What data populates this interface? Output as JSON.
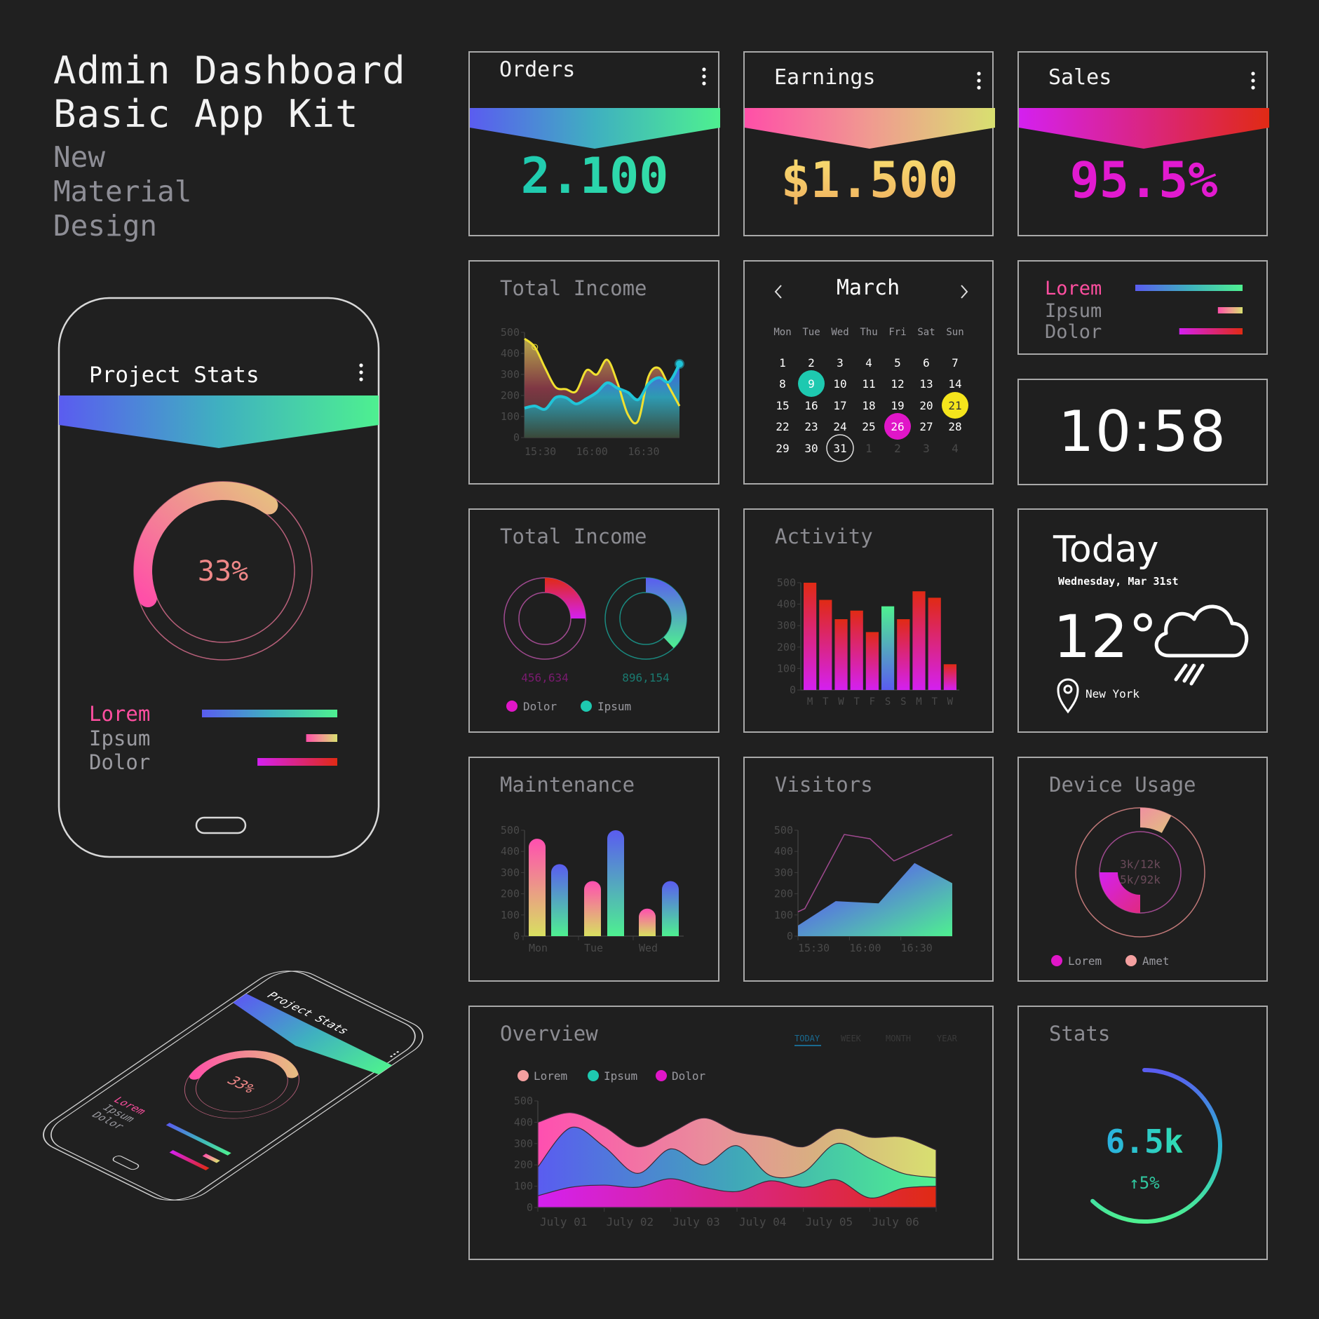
{
  "header": {
    "title_line1": "Admin Dashboard",
    "title_line2": "Basic App Kit",
    "subtitle": [
      "New",
      "Material",
      "Design"
    ]
  },
  "colors": {
    "background": "#202020",
    "border": "#a9a9a9",
    "teal": "#1ec9b0",
    "yellow": "#f5e51c",
    "magenta": "#e016c8",
    "pink": "#ff4fa0",
    "blue": "#5a5cf0",
    "green": "#4ef090",
    "red": "#e02a14"
  },
  "phone": {
    "title": "Project Stats",
    "menu_icon": "more-vertical-icon",
    "percent": "33%",
    "progress": 33,
    "legend": [
      {
        "label": "Lorem",
        "fill": 1.0
      },
      {
        "label": "Ipsum",
        "fill": 0.23
      },
      {
        "label": "Dolor",
        "fill": 0.59
      }
    ]
  },
  "stat_cards": [
    {
      "label": "Orders",
      "value": "2.100",
      "menu_icon": "more-vertical-icon"
    },
    {
      "label": "Earnings",
      "value": "$1.500",
      "menu_icon": "more-vertical-icon"
    },
    {
      "label": "Sales",
      "value": "95.5%",
      "menu_icon": "more-vertical-icon"
    }
  ],
  "income_area": {
    "title": "Total Income",
    "chart_data": {
      "type": "area",
      "ylim": [
        0,
        500
      ],
      "yticks": [
        "0",
        "100",
        "200",
        "300",
        "400",
        "500"
      ],
      "xticks": [
        "15:30",
        "16:00",
        "16:30"
      ],
      "x": [
        "15:30",
        "15:36",
        "15:42",
        "15:48",
        "15:54",
        "16:00",
        "16:06",
        "16:12",
        "16:18",
        "16:24",
        "16:30",
        "16:36",
        "16:42",
        "16:48",
        "16:54",
        "17:00"
      ],
      "series": [
        {
          "values": [
            470,
            430,
            330,
            240,
            230,
            220,
            320,
            300,
            370,
            260,
            110,
            80,
            290,
            330,
            240,
            150
          ],
          "color": "#f0e030"
        },
        {
          "values": [
            140,
            150,
            135,
            190,
            190,
            160,
            185,
            215,
            260,
            235,
            215,
            180,
            255,
            285,
            265,
            350
          ],
          "color": "#20c4d8"
        }
      ]
    }
  },
  "calendar": {
    "month": "March",
    "prev_icon": "chevron-left-icon",
    "next_icon": "chevron-right-icon",
    "weekdays": [
      "Mon",
      "Tue",
      "Wed",
      "Thu",
      "Fri",
      "Sat",
      "Sun"
    ],
    "days": [
      "1",
      "2",
      "3",
      "4",
      "5",
      "6",
      "7",
      "8",
      "9",
      "10",
      "11",
      "12",
      "13",
      "14",
      "15",
      "16",
      "17",
      "18",
      "19",
      "20",
      "21",
      "22",
      "23",
      "24",
      "25",
      "26",
      "27",
      "28",
      "29",
      "30",
      "31"
    ],
    "next_month_days": [
      "1",
      "2",
      "3",
      "4"
    ],
    "highlights": {
      "9": "#1ec9b0",
      "21": "#f5e51c",
      "26": "#e016c8"
    },
    "today": "31"
  },
  "bars_legend": {
    "items": [
      {
        "label": "Lorem",
        "fill": 1.0
      },
      {
        "label": "Ipsum",
        "fill": 0.23
      },
      {
        "label": "Dolor",
        "fill": 0.59
      }
    ]
  },
  "clock": {
    "time": "10:58"
  },
  "income_donuts": {
    "title": "Total Income",
    "chart_data": {
      "type": "pie",
      "series": [
        {
          "name": "Dolor",
          "value": "456,634",
          "fraction": 0.25,
          "color": "#e016c8"
        },
        {
          "name": "Ipsum",
          "value": "896,154",
          "fraction": 0.38,
          "color": "#1ec9b0"
        }
      ]
    }
  },
  "activity": {
    "title": "Activity",
    "chart_data": {
      "type": "bar",
      "ylim": [
        0,
        500
      ],
      "yticks": [
        "0",
        "100",
        "200",
        "300",
        "400",
        "500"
      ],
      "categories": [
        "M",
        "T",
        "W",
        "T",
        "F",
        "S",
        "S",
        "M",
        "T",
        "W"
      ],
      "values": [
        500,
        420,
        330,
        370,
        270,
        390,
        330,
        460,
        430,
        120
      ],
      "highlight_index": 5
    }
  },
  "weather": {
    "title": "Today",
    "date": "Wednesday, Mar 31st",
    "temperature": "12°",
    "icon": "cloud-rain-icon",
    "location": "New York"
  },
  "maintenance": {
    "title": "Maintenance",
    "chart_data": {
      "type": "bar",
      "ylim": [
        0,
        500
      ],
      "yticks": [
        "0",
        "100",
        "200",
        "300",
        "400",
        "500"
      ],
      "categories": [
        "Mon",
        "Tue",
        "Wed"
      ],
      "values": [
        [
          460,
          340
        ],
        [
          260,
          500
        ],
        [
          130,
          260
        ]
      ]
    }
  },
  "visitors": {
    "title": "Visitors",
    "chart_data": {
      "type": "area",
      "ylim": [
        0,
        500
      ],
      "yticks": [
        "0",
        "100",
        "200",
        "300",
        "400",
        "500"
      ],
      "xticks": [
        "15:30",
        "16:00",
        "16:30"
      ],
      "xlim": [
        "15:30",
        "17:00"
      ],
      "series": [
        {
          "kind": "line",
          "x": [
            "15:30",
            "15:34",
            "15:57",
            "16:12",
            "16:26",
            "17:00"
          ],
          "values": [
            115,
            130,
            480,
            460,
            355,
            480
          ]
        },
        {
          "kind": "area",
          "x": [
            "15:30",
            "15:52",
            "16:17",
            "16:38",
            "17:00"
          ],
          "values": [
            50,
            165,
            155,
            345,
            250
          ]
        }
      ]
    }
  },
  "device_usage": {
    "title": "Device Usage",
    "center_lines": [
      "3k/12k",
      "5k/92k"
    ],
    "chart_data": {
      "type": "pie",
      "series": [
        {
          "name": "Lorem",
          "fraction": 0.25,
          "color": "#e016c8"
        },
        {
          "name": "Amet",
          "fraction": 0.08,
          "color": "#f4a0a0"
        }
      ]
    }
  },
  "overview": {
    "title": "Overview",
    "tabs": [
      "TODAY",
      "WEEK",
      "MONTH",
      "YEAR"
    ],
    "active_tab": 0,
    "chart_data": {
      "type": "area",
      "stacked": true,
      "ylim": [
        0,
        500
      ],
      "yticks": [
        "0",
        "100",
        "200",
        "300",
        "400",
        "500"
      ],
      "xticks": [
        "July 01",
        "July 02",
        "July 03",
        "July 04",
        "July 05",
        "July 06"
      ],
      "x": [
        "Jul 01 00:00",
        "Jul 01 12:00",
        "Jul 02 00:00",
        "Jul 02 12:00",
        "Jul 03 00:00",
        "Jul 03 12:00",
        "Jul 04 00:00",
        "Jul 04 12:00",
        "Jul 05 00:00",
        "Jul 05 12:00",
        "Jul 06 00:00",
        "Jul 06 12:00",
        "Jul 07 00:00"
      ],
      "series": [
        {
          "name": "Dolor",
          "color": "#e016c8",
          "values": [
            55,
            95,
            105,
            95,
            135,
            95,
            75,
            125,
            95,
            130,
            45,
            90,
            100
          ]
        },
        {
          "name": "Ipsum",
          "color": "#1ec9b0",
          "values": [
            135,
            280,
            180,
            65,
            140,
            105,
            215,
            25,
            70,
            170,
            185,
            70,
            40
          ]
        },
        {
          "name": "Lorem",
          "color": "#f4a0a0",
          "values": [
            210,
            70,
            95,
            125,
            75,
            220,
            65,
            180,
            120,
            70,
            100,
            170,
            130
          ]
        }
      ]
    }
  },
  "stats": {
    "title": "Stats",
    "value": "6.5k",
    "change": "↑5%",
    "progress": 0.62
  }
}
